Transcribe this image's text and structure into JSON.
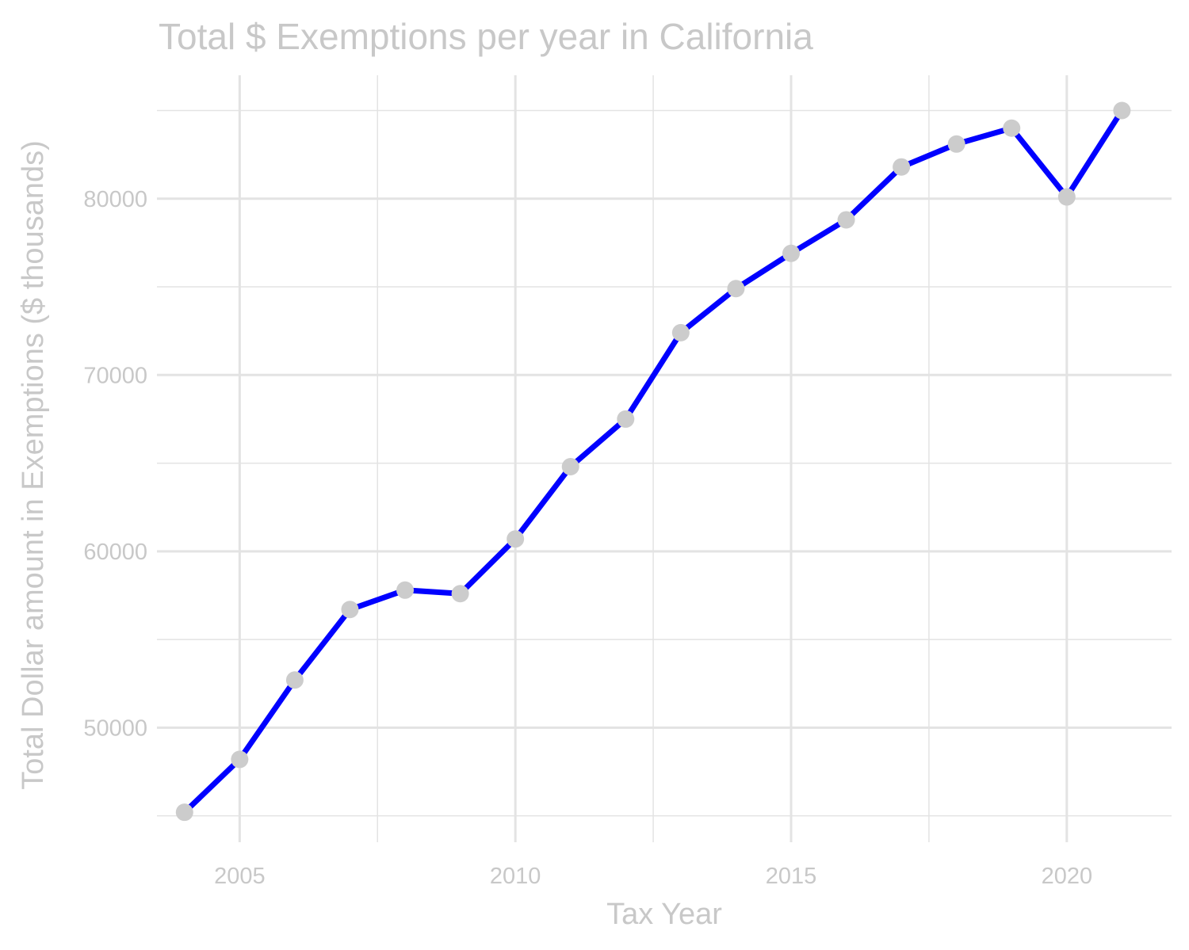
{
  "chart_data": {
    "type": "line",
    "title": "Total $ Exemptions per year in California",
    "xlabel": "Tax Year",
    "ylabel": "Total Dollar amount in Exemptions ($ thousands)",
    "xlim": [
      2003.5,
      2021.9
    ],
    "ylim": [
      43500,
      87000
    ],
    "x_ticks": [
      2005,
      2010,
      2015,
      2020
    ],
    "x_minor_ticks": [
      2007.5,
      2012.5,
      2017.5
    ],
    "y_ticks": [
      50000,
      60000,
      70000,
      80000
    ],
    "y_minor_ticks": [
      45000,
      55000,
      65000,
      75000,
      85000
    ],
    "grid": true,
    "series": [
      {
        "x": [
          2004,
          2005,
          2006,
          2007,
          2008,
          2009,
          2010,
          2011,
          2012,
          2013,
          2014,
          2015,
          2016,
          2017,
          2018,
          2019,
          2020,
          2021
        ],
        "values": [
          45200,
          48200,
          52700,
          56700,
          57800,
          57600,
          60700,
          64800,
          67500,
          72400,
          74900,
          76900,
          78800,
          81800,
          83100,
          84000,
          80100,
          85000
        ]
      }
    ],
    "colors": {
      "line": "#0000ff",
      "points": "#cccccc",
      "grid": "#e3e3e3",
      "text": "#c8c8c8"
    }
  }
}
